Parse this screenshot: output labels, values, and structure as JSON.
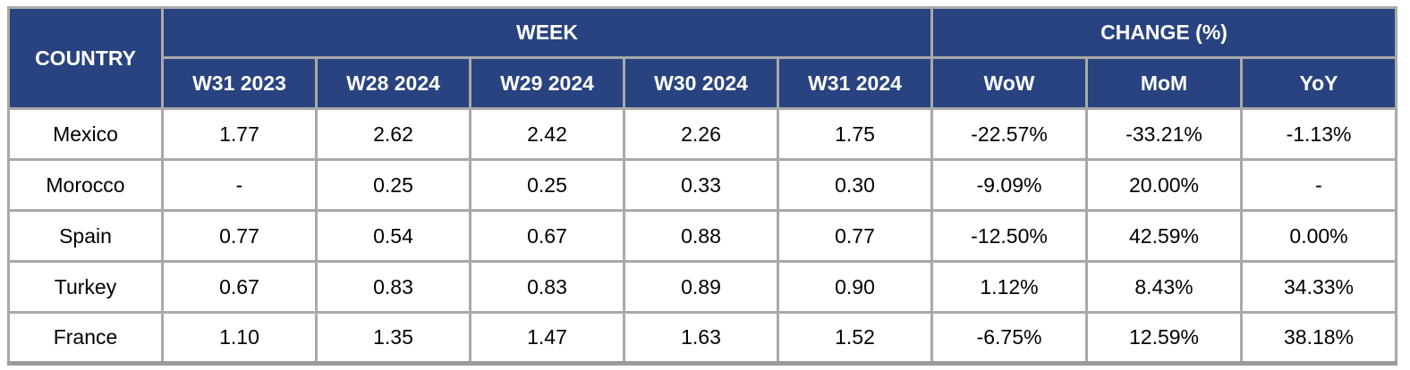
{
  "colors": {
    "header_background": "#28437f",
    "header_text": "#ffffff",
    "border": "#a9a9a9",
    "cell_text": "#000000",
    "page_background": "#ffffff"
  },
  "chart_data": {
    "type": "table",
    "corner_header": "COUNTRY",
    "column_groups": [
      {
        "label": "WEEK",
        "span": 5
      },
      {
        "label": "CHANGE (%)",
        "span": 3
      }
    ],
    "week_columns": [
      "W31 2023",
      "W28 2024",
      "W29 2024",
      "W30 2024",
      "W31 2024"
    ],
    "change_columns": [
      "WoW",
      "MoM",
      "YoY"
    ],
    "rows": [
      {
        "country": "Mexico",
        "weeks": [
          "1.77",
          "2.62",
          "2.42",
          "2.26",
          "1.75"
        ],
        "changes": [
          "-22.57%",
          "-33.21%",
          "-1.13%"
        ]
      },
      {
        "country": "Morocco",
        "weeks": [
          "-",
          "0.25",
          "0.25",
          "0.33",
          "0.30"
        ],
        "changes": [
          "-9.09%",
          "20.00%",
          "-"
        ]
      },
      {
        "country": "Spain",
        "weeks": [
          "0.77",
          "0.54",
          "0.67",
          "0.88",
          "0.77"
        ],
        "changes": [
          "-12.50%",
          "42.59%",
          "0.00%"
        ]
      },
      {
        "country": "Turkey",
        "weeks": [
          "0.67",
          "0.83",
          "0.83",
          "0.89",
          "0.90"
        ],
        "changes": [
          "1.12%",
          "8.43%",
          "34.33%"
        ]
      },
      {
        "country": "France",
        "weeks": [
          "1.10",
          "1.35",
          "1.47",
          "1.63",
          "1.52"
        ],
        "changes": [
          "-6.75%",
          "12.59%",
          "38.18%"
        ]
      }
    ]
  }
}
